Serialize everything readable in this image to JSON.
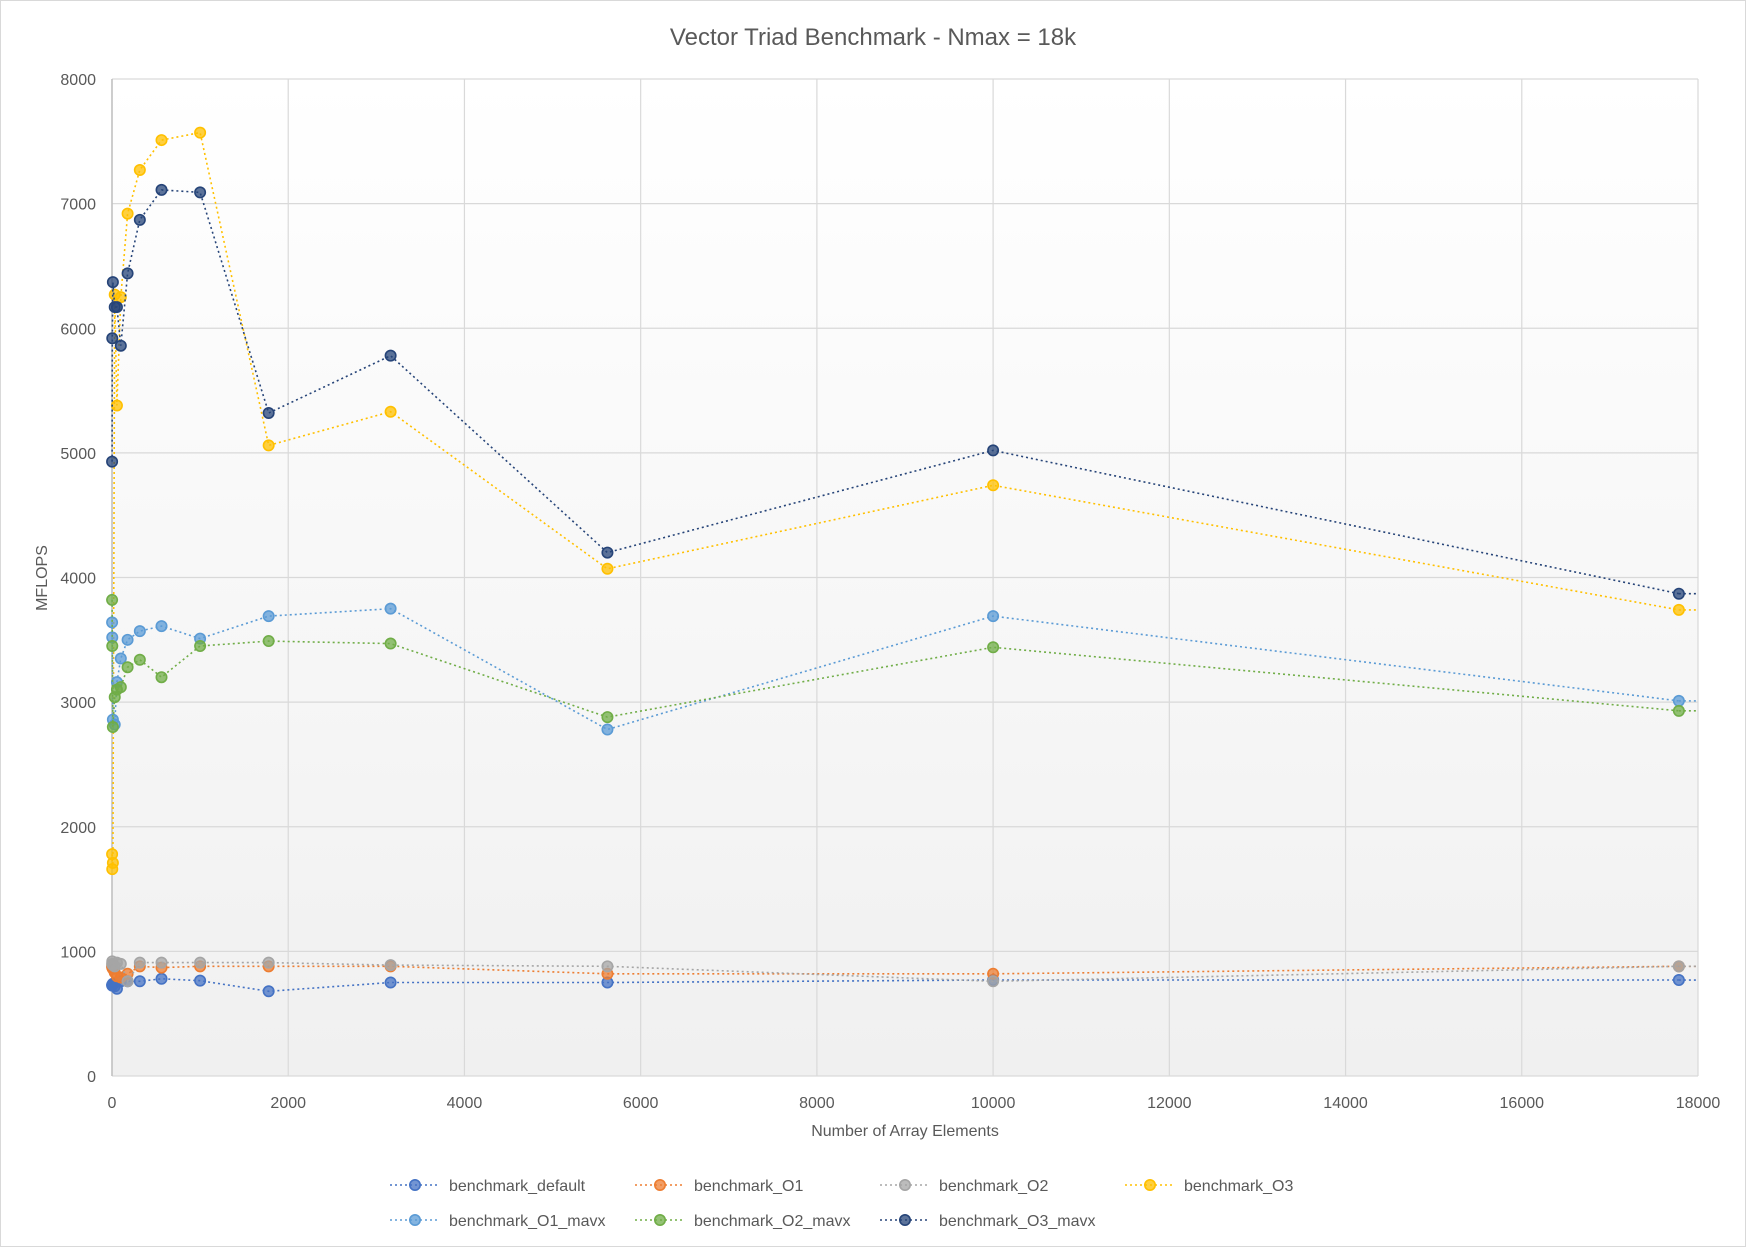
{
  "chart_data": {
    "type": "scatter",
    "title": "Vector Triad Benchmark  - Nmax = 18k",
    "xlabel": "Number of Array Elements",
    "ylabel": "MFLOPS",
    "xlim": [
      0,
      18000
    ],
    "ylim": [
      0,
      8000
    ],
    "x_ticks": [
      0,
      2000,
      4000,
      6000,
      8000,
      10000,
      12000,
      14000,
      16000,
      18000
    ],
    "y_ticks": [
      0,
      1000,
      2000,
      3000,
      4000,
      5000,
      6000,
      7000,
      8000
    ],
    "grid": true,
    "legend_position": "bottom",
    "line_style": "dotted",
    "x": [
      1,
      3,
      10,
      31,
      56,
      100,
      177,
      316,
      562,
      1000,
      1778,
      3162,
      5623,
      10000,
      17783
    ],
    "series": [
      {
        "name": "benchmark_default",
        "color": "#4472c4",
        "values": [
          730,
          725,
          740,
          720,
          700,
          760,
          760,
          760,
          780,
          765,
          680,
          750,
          750,
          770,
          770
        ]
      },
      {
        "name": "benchmark_O1",
        "color": "#ed7d31",
        "values": [
          880,
          870,
          860,
          830,
          800,
          790,
          820,
          880,
          870,
          880,
          880,
          880,
          820,
          820,
          880
        ]
      },
      {
        "name": "benchmark_O2",
        "color": "#a5a5a5",
        "values": [
          900,
          920,
          890,
          880,
          910,
          900,
          760,
          910,
          910,
          910,
          910,
          890,
          880,
          760,
          880
        ]
      },
      {
        "name": "benchmark_O3",
        "color": "#ffc000",
        "values": [
          1780,
          1660,
          1710,
          6270,
          5380,
          6250,
          6920,
          7270,
          7510,
          7570,
          5060,
          5330,
          4070,
          4740,
          3740
        ]
      },
      {
        "name": "benchmark_O1_mavx",
        "color": "#5b9bd5",
        "values": [
          3640,
          3520,
          2860,
          2820,
          3160,
          3350,
          3500,
          3570,
          3610,
          3510,
          3690,
          3750,
          2780,
          3690,
          3010
        ]
      },
      {
        "name": "benchmark_O2_mavx",
        "color": "#70ad47",
        "values": [
          3820,
          3450,
          2800,
          3040,
          3100,
          3120,
          3280,
          3340,
          3200,
          3450,
          3490,
          3470,
          2880,
          3440,
          2930
        ]
      },
      {
        "name": "benchmark_O3_mavx",
        "color": "#264478",
        "values": [
          4930,
          5920,
          6370,
          6170,
          6170,
          5860,
          6440,
          6870,
          7110,
          7090,
          5320,
          5780,
          4200,
          5020,
          3870
        ]
      }
    ]
  }
}
